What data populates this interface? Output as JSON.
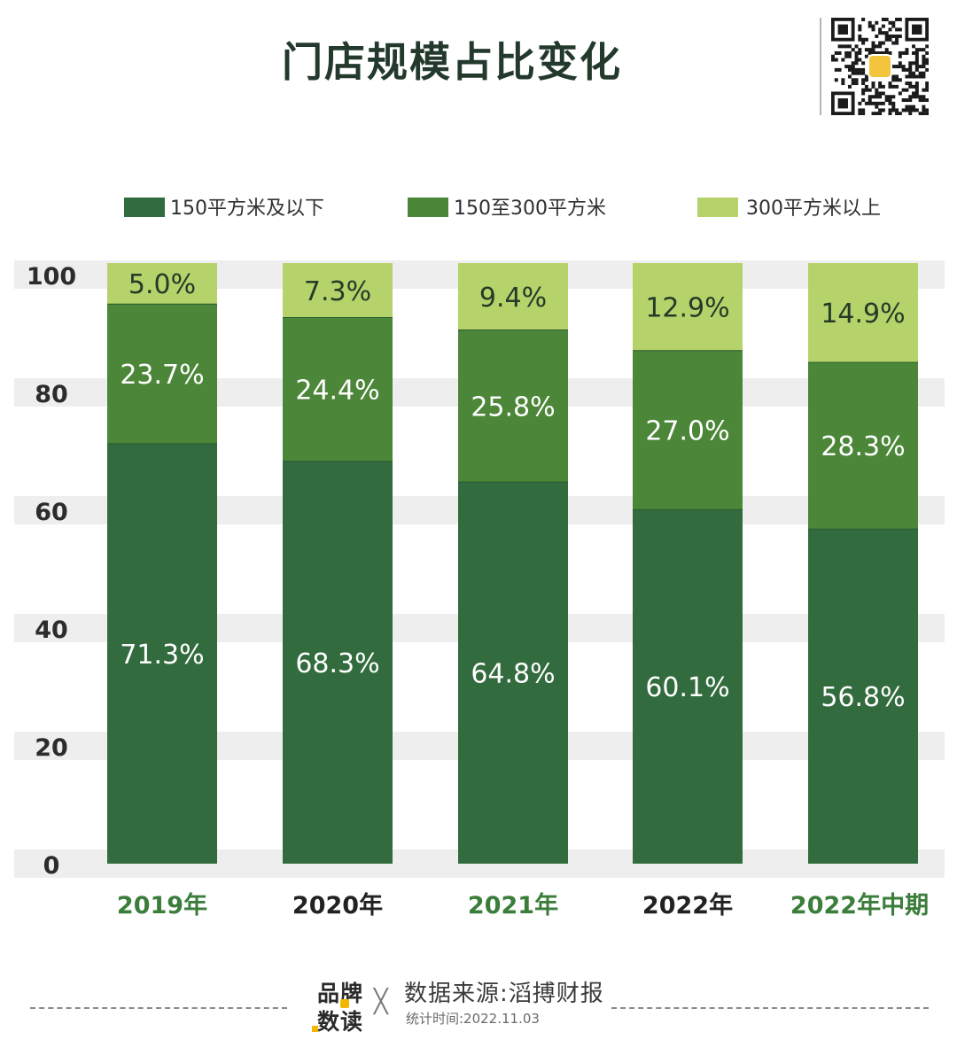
{
  "page": {
    "title": "门店规模占比变化"
  },
  "chart_data": {
    "type": "bar",
    "stacked": true,
    "title": "门店规模占比变化",
    "categories": [
      "2019年",
      "2020年",
      "2021年",
      "2022年",
      "2022年中期"
    ],
    "category_colors": [
      "#3b7d3a",
      "#222222",
      "#3b7d3a",
      "#222222",
      "#3b7d3a"
    ],
    "series": [
      {
        "name": "150平方米及以下",
        "color": "#326b3d",
        "values": [
          71.3,
          68.3,
          64.8,
          60.1,
          56.8
        ],
        "labels": [
          "71.3%",
          "68.3%",
          "64.8%",
          "60.1%",
          "56.8%"
        ]
      },
      {
        "name": "150至300平方米",
        "color": "#4c8638",
        "values": [
          23.7,
          24.4,
          25.8,
          27.0,
          28.3
        ],
        "labels": [
          "23.7%",
          "24.4%",
          "25.8%",
          "27.0%",
          "28.3%"
        ]
      },
      {
        "name": "300平方米以上",
        "color": "#b5d36a",
        "values": [
          5.0,
          7.3,
          9.4,
          12.9,
          14.9
        ],
        "labels": [
          "5.0%",
          "7.3%",
          "9.4%",
          "12.9%",
          "14.9%"
        ]
      }
    ],
    "yticks": [
      "0",
      "20",
      "40",
      "60",
      "80",
      "100"
    ],
    "ylim": [
      0,
      104
    ],
    "legend_position": "top",
    "grid": true
  },
  "footer": {
    "brand_line1": "品牌",
    "brand_line2": "数读",
    "cross": "╳",
    "source": "数据来源:滔搏财报",
    "stat_time": "统计时间:2022.11.03"
  },
  "colors": {
    "title": "#23392c",
    "band": "#eeeeee",
    "qr_dark": "#1b1b1b",
    "qr_badge": "#f2c53d"
  }
}
